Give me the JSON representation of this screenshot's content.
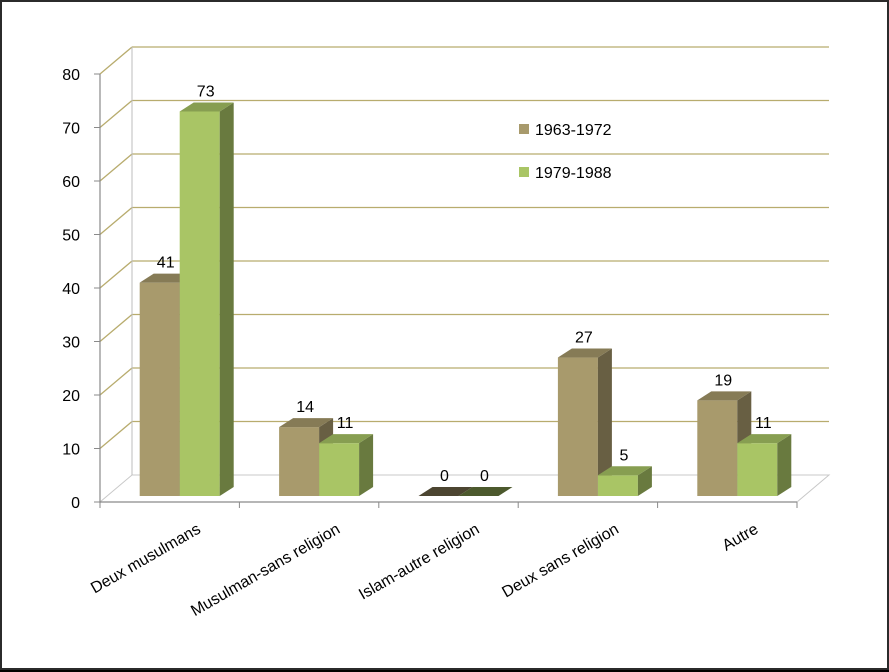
{
  "chart_data": {
    "type": "bar",
    "categories": [
      "Deux musulmans",
      "Musulman-sans religion",
      "Islam-autre religion",
      "Deux sans religion",
      "Autre"
    ],
    "series": [
      {
        "name": "1963-1972",
        "values": [
          41,
          14,
          0,
          27,
          19
        ],
        "color": "#a89a6c"
      },
      {
        "name": "1979-1988",
        "values": [
          73,
          11,
          0,
          5,
          11
        ],
        "color": "#a9c565"
      }
    ],
    "ylim": [
      0,
      80
    ],
    "yticks": [
      "0",
      "10",
      "20",
      "30",
      "40",
      "50",
      "60",
      "70",
      "80"
    ],
    "data_labels": [
      [
        "41",
        "14",
        "0",
        "27",
        "19"
      ],
      [
        "73",
        "11",
        "0",
        "5",
        "11"
      ]
    ],
    "grid": true,
    "legend_position": "top-right",
    "gridline_color": "#b8ac6e",
    "three_d": true
  }
}
